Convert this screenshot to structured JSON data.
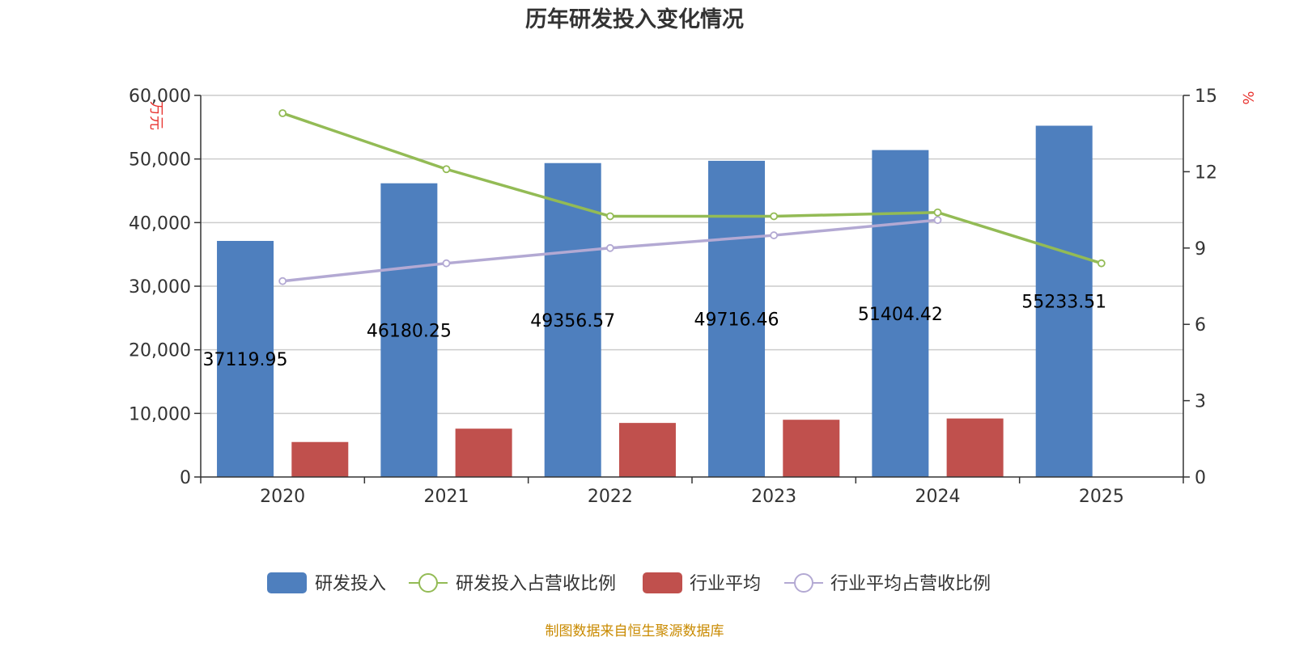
{
  "chart_data": {
    "type": "bar",
    "title": "历年研发投入变化情况",
    "categories": [
      "2020",
      "2021",
      "2022",
      "2023",
      "2024",
      "2025"
    ],
    "y_left": {
      "unit": "万元",
      "min": 0,
      "max": 60000,
      "ticks": [
        "0",
        "10,000",
        "20,000",
        "30,000",
        "40,000",
        "50,000",
        "60,000"
      ]
    },
    "y_right": {
      "unit": "%",
      "min": 0,
      "max": 15,
      "ticks": [
        "0",
        "3",
        "6",
        "9",
        "12",
        "15"
      ]
    },
    "grid": true,
    "legend_position": "bottom",
    "series": [
      {
        "name": "研发投入",
        "type": "bar",
        "axis": "left",
        "color": "#4e7fbe",
        "values": [
          37119.95,
          46180.25,
          49356.57,
          49716.46,
          51404.42,
          55233.51
        ],
        "labels": [
          "37119.95",
          "46180.25",
          "49356.57",
          "49716.46",
          "51404.42",
          "55233.51"
        ]
      },
      {
        "name": "研发投入占营收比例",
        "type": "line",
        "axis": "right",
        "color": "#93bb55",
        "values": [
          14.3,
          12.1,
          10.25,
          10.25,
          10.4,
          8.4
        ]
      },
      {
        "name": "行业平均",
        "type": "bar",
        "axis": "left",
        "color": "#c0504d",
        "values": [
          5500,
          7600,
          8500,
          9000,
          9200,
          null
        ]
      },
      {
        "name": "行业平均占营收比例",
        "type": "line",
        "axis": "right",
        "color": "#b3a9d3",
        "values": [
          7.7,
          8.4,
          9.0,
          9.5,
          10.1,
          null
        ]
      }
    ]
  },
  "source": "制图数据来自恒生聚源数据库"
}
